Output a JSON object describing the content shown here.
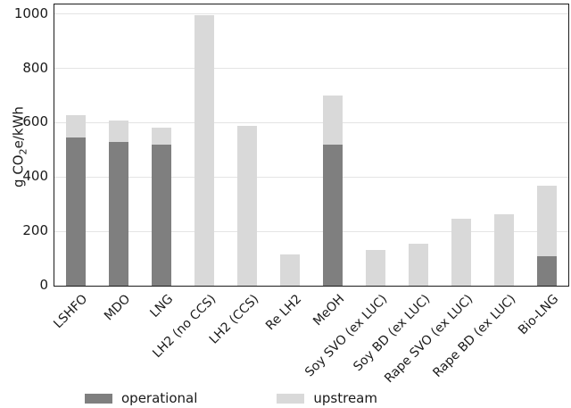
{
  "chart_data": {
    "type": "bar",
    "stacked": true,
    "categories": [
      "LSHFO",
      "MDO",
      "LNG",
      "LH2 (no CCS)",
      "LH2 (CCS)",
      "Re LH2",
      "MeOH",
      "Soy SVO (ex LUC)",
      "Soy BD (ex LUC)",
      "Rape SVO (ex LUC)",
      "Rape BD (ex LUC)",
      "Bio-LNG"
    ],
    "series": [
      {
        "name": "operational",
        "color": "#7f7f7f",
        "values": [
          545,
          530,
          518,
          0,
          0,
          0,
          520,
          0,
          0,
          0,
          0,
          110
        ]
      },
      {
        "name": "upstream",
        "color": "#d9d9d9",
        "values": [
          83,
          77,
          64,
          997,
          588,
          115,
          180,
          133,
          153,
          248,
          263,
          257
        ]
      }
    ],
    "totals": [
      628,
      607,
      582,
      997,
      588,
      115,
      700,
      133,
      153,
      248,
      263,
      367
    ],
    "ylabel_parts": {
      "before_sub": "g CO",
      "sub": "2",
      "after_sub": "e/kWh"
    },
    "yticks": [
      0,
      200,
      400,
      600,
      800,
      1000
    ],
    "ylim": [
      0,
      1035
    ],
    "grid": "horizontal",
    "legend_position": "bottom",
    "title": ""
  },
  "colors": {
    "operational": "#7f7f7f",
    "upstream": "#d9d9d9",
    "gridline": "#e4e4e4",
    "spine": "#1c1c1c",
    "background": "#ffffff"
  }
}
